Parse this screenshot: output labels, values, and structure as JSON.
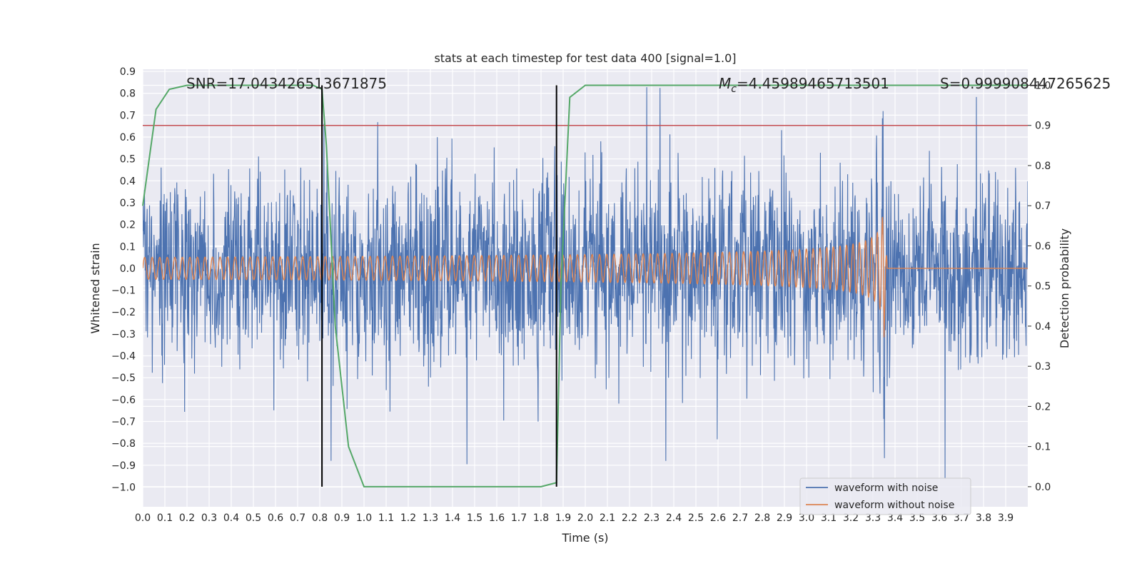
{
  "chart_data": {
    "type": "line",
    "title": "stats at each timestep for test data 400 [signal=1.0]",
    "xlabel": "Time (s)",
    "ylabel": "Whitened strain",
    "y2label": "Detection probability",
    "xlim": [
      0.0,
      4.0
    ],
    "ylim": [
      -1.09,
      0.91
    ],
    "y2lim": [
      -0.05,
      1.04
    ],
    "x_ticks": [
      "0.0",
      "0.1",
      "0.2",
      "0.3",
      "0.4",
      "0.5",
      "0.6",
      "0.7",
      "0.8",
      "0.9",
      "1.0",
      "1.1",
      "1.2",
      "1.3",
      "1.4",
      "1.5",
      "1.6",
      "1.7",
      "1.8",
      "1.9",
      "2.0",
      "2.1",
      "2.2",
      "2.3",
      "2.4",
      "2.5",
      "2.6",
      "2.7",
      "2.8",
      "2.9",
      "3.0",
      "3.1",
      "3.2",
      "3.3",
      "3.4",
      "3.5",
      "3.6",
      "3.7",
      "3.8",
      "3.9"
    ],
    "y_ticks": [
      "0.9",
      "0.8",
      "0.7",
      "0.6",
      "0.5",
      "0.4",
      "0.3",
      "0.2",
      "0.1",
      "0.0",
      "−0.1",
      "−0.2",
      "−0.3",
      "−0.4",
      "−0.5",
      "−0.6",
      "−0.7",
      "−0.8",
      "−0.9",
      "−1.0"
    ],
    "y2_ticks": [
      "1.0",
      "0.9",
      "0.8",
      "0.7",
      "0.6",
      "0.5",
      "0.4",
      "0.3",
      "0.2",
      "0.1",
      "0.0"
    ],
    "grid": true,
    "legend_position": "bottom-right",
    "annotations": {
      "snr": "SNR=17.043426513671875",
      "mc_symbol": "M",
      "mc_sub": "c",
      "mc_value": "=4.45989465713501",
      "s": "S=0.999908447265625"
    },
    "series": [
      {
        "name": "waveform with noise",
        "color": "#4c72b0",
        "kind": "noise",
        "amplitude_rms": 0.2,
        "y_range": [
          -0.97,
          0.86
        ]
      },
      {
        "name": "waveform without noise",
        "color": "#dd8452",
        "kind": "chirp",
        "x_end": 3.35,
        "amplitude_start": 0.05,
        "amplitude_peak": 0.41,
        "amplitude_trough": -0.32
      }
    ],
    "detection_probability": {
      "color": "#55a868",
      "axis": "right",
      "x": [
        0.0,
        0.06,
        0.12,
        0.2,
        0.3,
        0.5,
        0.7,
        0.77,
        0.81,
        0.83,
        0.87,
        0.93,
        1.0,
        1.3,
        1.6,
        1.8,
        1.87,
        1.89,
        1.93,
        2.0,
        2.5,
        3.0,
        3.5,
        4.0
      ],
      "y": [
        0.7,
        0.94,
        0.99,
        1.0,
        1.0,
        1.0,
        1.0,
        1.0,
        0.99,
        0.85,
        0.4,
        0.1,
        0.0,
        0.0,
        0.0,
        0.0,
        0.01,
        0.5,
        0.97,
        1.0,
        1.0,
        1.0,
        1.0,
        1.0
      ]
    },
    "threshold": {
      "value": 0.9,
      "axis": "right",
      "color": "#c44e52"
    },
    "vertical_markers": {
      "x": [
        0.81,
        1.87
      ],
      "color": "#000000"
    }
  }
}
